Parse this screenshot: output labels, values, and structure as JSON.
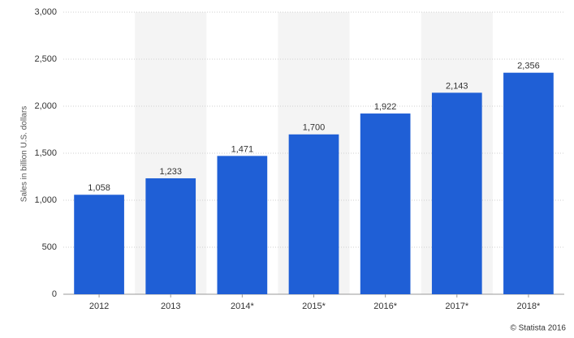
{
  "chart_data": {
    "type": "bar",
    "y_label": "Sales in billion U.S. dollars",
    "credit": "© Statista 2016",
    "categories": [
      "2012",
      "2013",
      "2014*",
      "2015*",
      "2016*",
      "2017*",
      "2018*"
    ],
    "values": [
      1058,
      1233,
      1471,
      1700,
      1922,
      2143,
      2356
    ],
    "value_labels": [
      "1,058",
      "1,233",
      "1,471",
      "1,700",
      "1,922",
      "2,143",
      "2,356"
    ],
    "color": "#1f5fd6",
    "ylim": [
      0,
      3000
    ],
    "yticks": [
      0,
      500,
      {
        "value": 1000,
        "label": "1,000"
      },
      {
        "value": 1500,
        "label": "1,500"
      },
      {
        "value": 2000,
        "label": "2,000"
      },
      {
        "value": 2500,
        "label": "2,500"
      },
      {
        "value": 3000,
        "label": "3,000"
      }
    ],
    "grid": true
  }
}
